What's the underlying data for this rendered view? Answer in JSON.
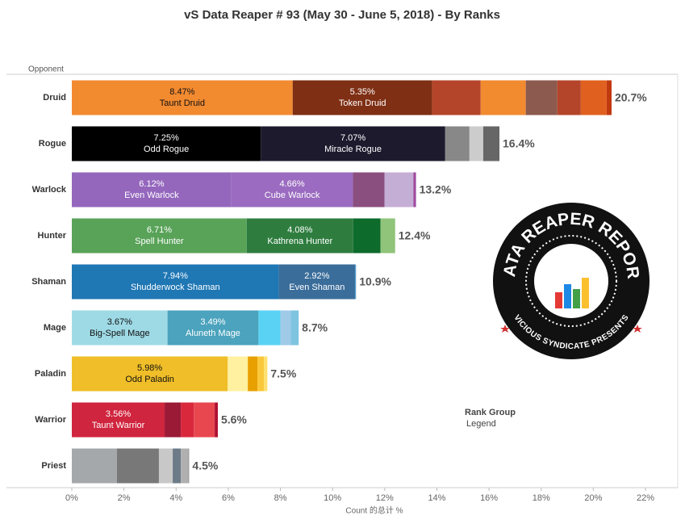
{
  "chart_data": {
    "type": "stacked_hbar",
    "title": "vS Data Reaper #  93 (May 30 - June 5, 2018) - By Ranks",
    "y_header": "Opponent",
    "xlabel": "Count 的总计 %",
    "legend_title": "Rank Group",
    "legend_subtitle": "Legend",
    "logo_top": "DATA REAPER REPORT",
    "logo_bottom": "VICIOUS SYNDICATE PRESENTS",
    "xlim": [
      0,
      22
    ],
    "xticks": [
      {
        "value": 0,
        "label": "0%"
      },
      {
        "value": 2,
        "label": "2%"
      },
      {
        "value": 4,
        "label": "4%"
      },
      {
        "value": 6,
        "label": "6%"
      },
      {
        "value": 8,
        "label": "8%"
      },
      {
        "value": 10,
        "label": "10%"
      },
      {
        "value": 12,
        "label": "12%"
      },
      {
        "value": 14,
        "label": "14%"
      },
      {
        "value": 16,
        "label": "16%"
      },
      {
        "value": 18,
        "label": "18%"
      },
      {
        "value": 20,
        "label": "20%"
      },
      {
        "value": 22,
        "label": "22%"
      }
    ],
    "bars": [
      {
        "category": "Druid",
        "total": 20.7,
        "total_label": "20.7%",
        "segments": [
          {
            "name": "Taunt Druid",
            "value": 8.47,
            "value_label": "8.47%",
            "color": "#f28a30"
          },
          {
            "name": "Token Druid",
            "value": 5.35,
            "value_label": "5.35%",
            "color": "#7f2f14"
          },
          {
            "value": 1.86,
            "color": "#b5452a"
          },
          {
            "value": 1.73,
            "color": "#f28a30"
          },
          {
            "value": 1.21,
            "color": "#8c5a4e"
          },
          {
            "value": 0.9,
            "color": "#b5452a"
          },
          {
            "value": 0.99,
            "color": "#e0601f"
          },
          {
            "value": 0.19,
            "color": "#c0390f"
          }
        ]
      },
      {
        "category": "Rogue",
        "total": 16.4,
        "total_label": "16.4%",
        "segments": [
          {
            "name": "Odd Rogue",
            "value": 7.25,
            "value_label": "7.25%",
            "color": "#000000"
          },
          {
            "name": "Miracle Rogue",
            "value": 7.07,
            "value_label": "7.07%",
            "color": "#1e1a2e"
          },
          {
            "value": 0.93,
            "color": "#888888"
          },
          {
            "value": 0.53,
            "color": "#cccccc"
          },
          {
            "value": 0.62,
            "color": "#666666"
          }
        ]
      },
      {
        "category": "Warlock",
        "total": 13.2,
        "total_label": "13.2%",
        "segments": [
          {
            "name": "Even Warlock",
            "value": 6.12,
            "value_label": "6.12%",
            "color": "#9467bd"
          },
          {
            "name": "Cube Warlock",
            "value": 4.66,
            "value_label": "4.66%",
            "color": "#9a6bc0"
          },
          {
            "value": 1.21,
            "color": "#8a4f7f"
          },
          {
            "value": 1.11,
            "color": "#c5aed5"
          },
          {
            "value": 0.1,
            "color": "#a04aa0"
          }
        ]
      },
      {
        "category": "Hunter",
        "total": 12.4,
        "total_label": "12.4%",
        "segments": [
          {
            "name": "Spell Hunter",
            "value": 6.71,
            "value_label": "6.71%",
            "color": "#59a359"
          },
          {
            "name": "Kathrena Hunter",
            "value": 4.08,
            "value_label": "4.08%",
            "color": "#2e7d3f"
          },
          {
            "value": 1.05,
            "color": "#0d6b2c"
          },
          {
            "value": 0.56,
            "color": "#8fc47a"
          }
        ]
      },
      {
        "category": "Shaman",
        "total": 10.9,
        "total_label": "10.9%",
        "segments": [
          {
            "name": "Shudderwock Shaman",
            "value": 7.94,
            "value_label": "7.94%",
            "color": "#1f77b4"
          },
          {
            "name": "Even Shaman",
            "value": 2.92,
            "value_label": "2.92%",
            "color": "#3a6d9a"
          },
          {
            "value": 0.04,
            "color": "#5a9fd0"
          }
        ]
      },
      {
        "category": "Mage",
        "total": 8.7,
        "total_label": "8.7%",
        "segments": [
          {
            "name": "Big-Spell Mage",
            "value": 3.67,
            "value_label": "3.67%",
            "color": "#9edae5"
          },
          {
            "name": "Aluneth Mage",
            "value": 3.49,
            "value_label": "3.49%",
            "color": "#4ba3bd"
          },
          {
            "value": 0.84,
            "color": "#5ad2f4"
          },
          {
            "value": 0.4,
            "color": "#a0cbe8"
          },
          {
            "value": 0.3,
            "color": "#7ec4e0"
          }
        ]
      },
      {
        "category": "Paladin",
        "total": 7.5,
        "total_label": "7.5%",
        "segments": [
          {
            "name": "Odd Paladin",
            "value": 5.98,
            "value_label": "5.98%",
            "color": "#f0be28"
          },
          {
            "value": 0.77,
            "color": "#fff1a0"
          },
          {
            "value": 0.37,
            "color": "#e8a000"
          },
          {
            "value": 0.25,
            "color": "#f9c83a"
          },
          {
            "value": 0.13,
            "color": "#ffe070"
          }
        ]
      },
      {
        "category": "Warrior",
        "total": 5.6,
        "total_label": "5.6%",
        "segments": [
          {
            "name": "Taunt Warrior",
            "value": 3.56,
            "value_label": "3.56%",
            "color": "#d0253e"
          },
          {
            "value": 0.62,
            "color": "#9b1a36"
          },
          {
            "value": 0.5,
            "color": "#d9283c"
          },
          {
            "value": 0.8,
            "color": "#e8474f"
          },
          {
            "value": 0.12,
            "color": "#b01030"
          }
        ]
      },
      {
        "category": "Priest",
        "total": 4.5,
        "total_label": "4.5%",
        "segments": [
          {
            "value": 1.73,
            "color": "#a5a8ab"
          },
          {
            "value": 1.61,
            "color": "#787878"
          },
          {
            "value": 0.53,
            "color": "#c8c8c8"
          },
          {
            "value": 0.31,
            "color": "#6d7b88"
          },
          {
            "value": 0.28,
            "color": "#b0b0b0"
          },
          {
            "value": 0.04,
            "color": "#999999"
          }
        ]
      }
    ]
  }
}
